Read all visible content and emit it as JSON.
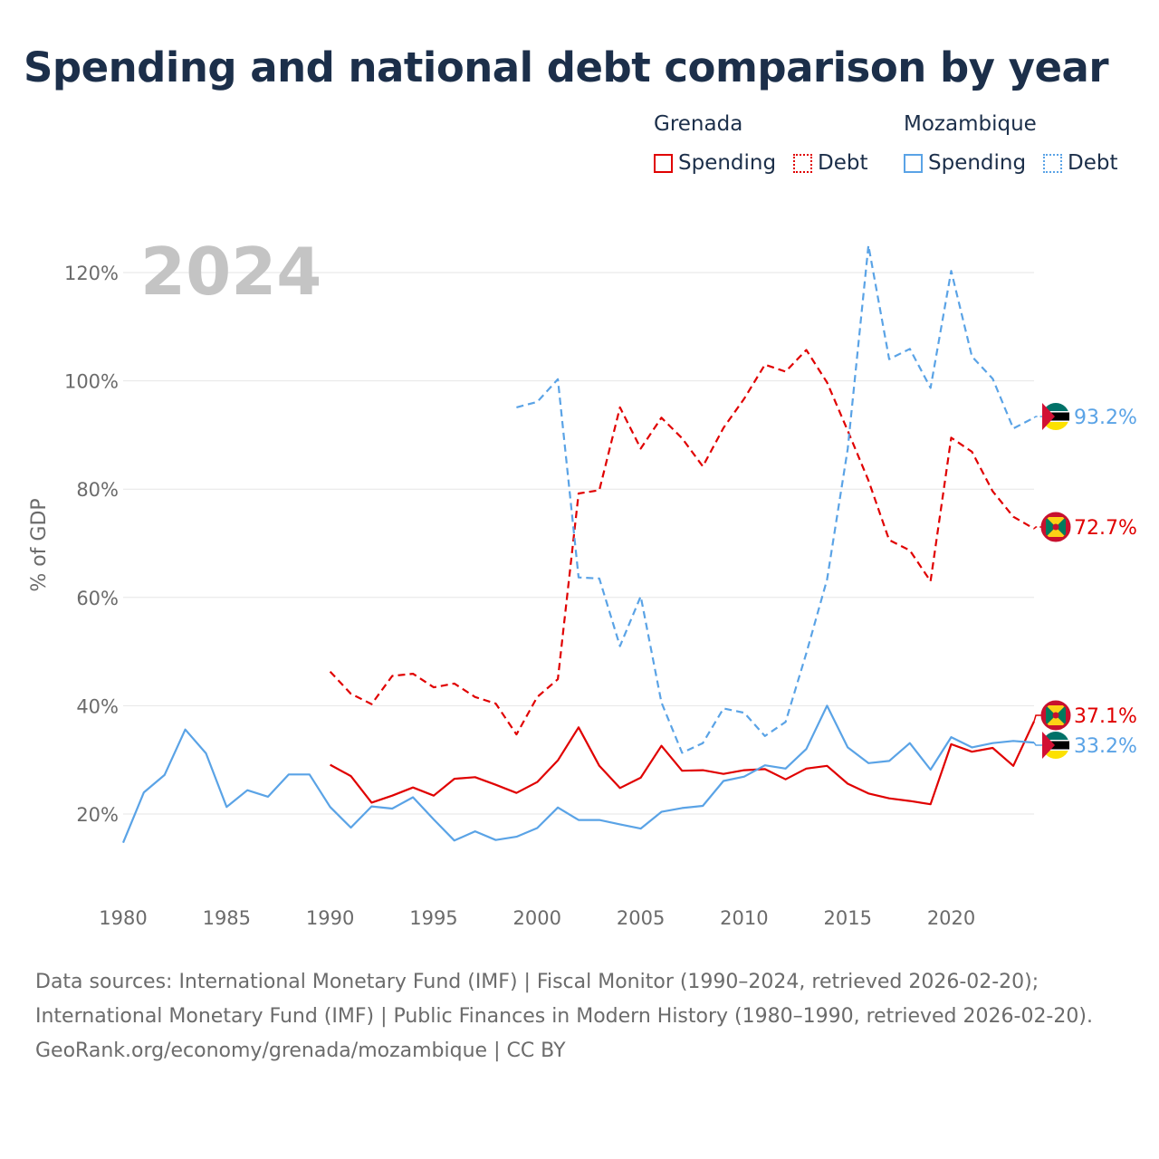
{
  "title": "Spending and national debt comparison by year",
  "legend": {
    "groups": [
      {
        "country": "Grenada",
        "items": [
          {
            "label": "Spending",
            "style": "solid",
            "color": "#e00000"
          },
          {
            "label": "Debt",
            "style": "dotted",
            "color": "#e00000"
          }
        ]
      },
      {
        "country": "Mozambique",
        "items": [
          {
            "label": "Spending",
            "style": "solid",
            "color": "#5aa3e6"
          },
          {
            "label": "Debt",
            "style": "dotted",
            "color": "#5aa3e6"
          }
        ]
      }
    ]
  },
  "chart_data": {
    "type": "line",
    "year_label": "2024",
    "ylabel": "% of GDP",
    "xlim": [
      1980,
      2024
    ],
    "ylim": [
      10,
      125
    ],
    "xticks": [
      1980,
      1985,
      1990,
      1995,
      2000,
      2005,
      2010,
      2015,
      2020
    ],
    "yticks": [
      20,
      40,
      60,
      80,
      100,
      120
    ],
    "ytick_labels": [
      "20%",
      "40%",
      "60%",
      "80%",
      "100%",
      "120%"
    ],
    "series": [
      {
        "name": "Grenada Spending",
        "country": "Grenada",
        "color": "#e00000",
        "dash": "solid",
        "x": [
          1990,
          1991,
          1992,
          1993,
          1994,
          1995,
          1996,
          1997,
          1998,
          1999,
          2000,
          2001,
          2002,
          2003,
          2004,
          2005,
          2006,
          2007,
          2008,
          2009,
          2010,
          2011,
          2012,
          2013,
          2014,
          2015,
          2016,
          2017,
          2018,
          2019,
          2020,
          2021,
          2022,
          2023,
          2024
        ],
        "values": [
          29.1,
          27.0,
          22.1,
          23.4,
          24.9,
          23.4,
          26.5,
          26.8,
          25.4,
          23.9,
          25.9,
          29.9,
          36.0,
          28.9,
          24.8,
          26.7,
          32.6,
          28.0,
          28.1,
          27.4,
          28.1,
          28.3,
          26.4,
          28.4,
          28.9,
          25.6,
          23.8,
          22.9,
          22.4,
          21.8,
          32.9,
          31.5,
          32.2,
          28.9,
          37.1
        ],
        "end_label": "37.1%"
      },
      {
        "name": "Grenada Debt",
        "country": "Grenada",
        "color": "#e00000",
        "dash": "dashed",
        "x": [
          1990,
          1991,
          1992,
          1993,
          1994,
          1995,
          1996,
          1997,
          1998,
          1999,
          2000,
          2001,
          2002,
          2003,
          2004,
          2005,
          2006,
          2007,
          2008,
          2009,
          2010,
          2011,
          2012,
          2013,
          2014,
          2015,
          2016,
          2017,
          2018,
          2019,
          2020,
          2021,
          2022,
          2023,
          2024
        ],
        "values": [
          46.3,
          42.2,
          40.3,
          45.5,
          45.9,
          43.4,
          44.1,
          41.6,
          40.4,
          34.7,
          41.6,
          44.9,
          79.2,
          79.8,
          95.1,
          87.5,
          93.2,
          89.4,
          84.2,
          91.3,
          96.7,
          103.0,
          101.7,
          105.7,
          99.7,
          90.8,
          81.6,
          70.6,
          68.7,
          63.0,
          89.5,
          86.9,
          79.6,
          74.9,
          72.7
        ],
        "end_label": "72.7%"
      },
      {
        "name": "Mozambique Spending",
        "country": "Mozambique",
        "color": "#5aa3e6",
        "dash": "solid",
        "x": [
          1980,
          1981,
          1982,
          1983,
          1984,
          1985,
          1986,
          1987,
          1988,
          1989,
          1990,
          1991,
          1992,
          1993,
          1994,
          1995,
          1996,
          1997,
          1998,
          1999,
          2000,
          2001,
          2002,
          2003,
          2004,
          2005,
          2006,
          2007,
          2008,
          2009,
          2010,
          2011,
          2012,
          2013,
          2014,
          2015,
          2016,
          2017,
          2018,
          2019,
          2020,
          2021,
          2022,
          2023,
          2024
        ],
        "values": [
          14.7,
          24.0,
          27.2,
          35.6,
          31.2,
          21.3,
          24.4,
          23.2,
          27.3,
          27.3,
          21.3,
          17.5,
          21.4,
          21.0,
          23.1,
          19.0,
          15.1,
          16.8,
          15.2,
          15.8,
          17.4,
          21.2,
          18.9,
          18.9,
          18.1,
          17.3,
          20.4,
          21.1,
          21.5,
          26.1,
          26.9,
          29.0,
          28.4,
          32.0,
          40.0,
          32.3,
          29.4,
          29.8,
          33.1,
          28.2,
          34.2,
          32.3,
          33.1,
          33.5,
          33.2
        ],
        "end_label": "33.2%"
      },
      {
        "name": "Mozambique Debt",
        "country": "Mozambique",
        "color": "#5aa3e6",
        "dash": "dashed",
        "x": [
          1999,
          2000,
          2001,
          2002,
          2003,
          2004,
          2005,
          2006,
          2007,
          2008,
          2009,
          2010,
          2011,
          2012,
          2013,
          2014,
          2015,
          2016,
          2017,
          2018,
          2019,
          2020,
          2021,
          2022,
          2023,
          2024
        ],
        "values": [
          95.1,
          96.1,
          100.3,
          63.7,
          63.5,
          51.0,
          60.2,
          40.6,
          31.3,
          33.1,
          39.5,
          38.7,
          34.4,
          37.0,
          49.7,
          63.3,
          87.4,
          125.0,
          104.0,
          105.9,
          98.7,
          120.3,
          104.5,
          100.4,
          91.2,
          93.2
        ],
        "end_label": "93.2%"
      }
    ]
  },
  "footer": {
    "sources": "Data sources: International Monetary Fund (IMF) | Fiscal Monitor (1990–2024, retrieved 2026-02-20); International Monetary Fund (IMF) | Public Finances in Modern History (1980–1990, retrieved 2026-02-20).",
    "credit": "GeoRank.org/economy/grenada/mozambique | CC BY"
  }
}
